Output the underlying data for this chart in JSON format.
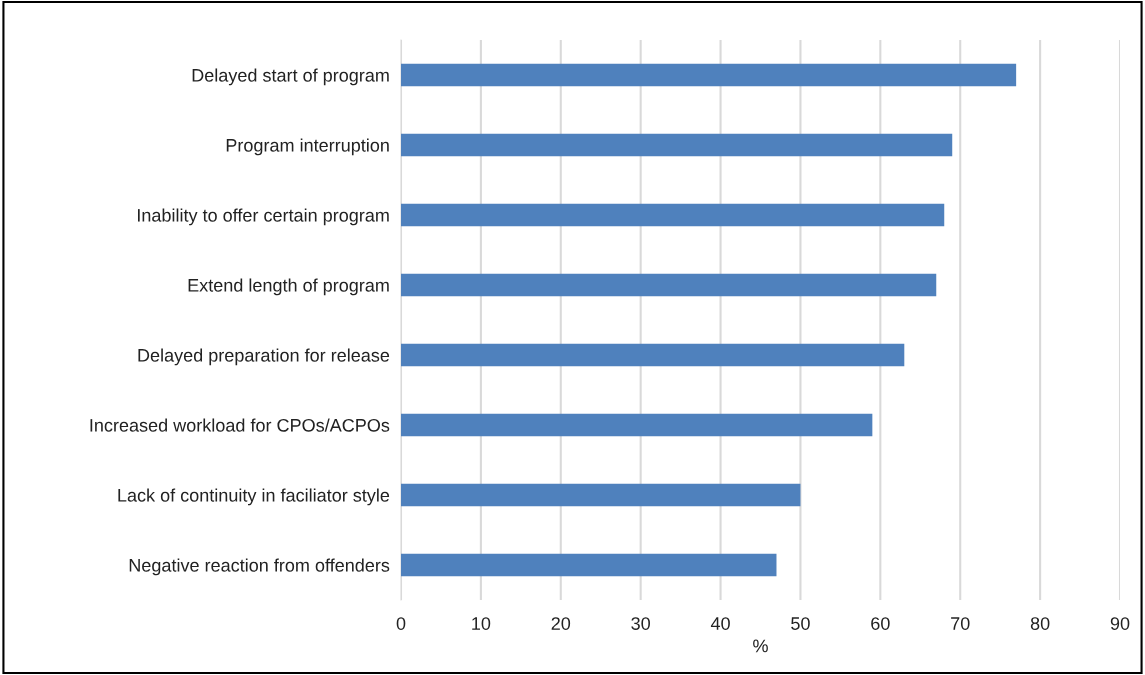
{
  "chart_data": {
    "type": "bar",
    "orientation": "horizontal",
    "categories": [
      "Delayed start of program",
      "Program interruption",
      "Inability to offer certain program",
      "Extend length of program",
      "Delayed preparation for release",
      "Increased workload for CPOs/ACPOs",
      "Lack of continuity in faciliator style",
      "Negative reaction from offenders"
    ],
    "values": [
      77,
      69,
      68,
      67,
      63,
      59,
      50,
      47
    ],
    "color": "#4f81bd",
    "xlabel": "%",
    "xlim": [
      0,
      90
    ],
    "xticks": [
      0,
      10,
      20,
      30,
      40,
      50,
      60,
      70,
      80,
      90
    ],
    "grid": "x"
  }
}
